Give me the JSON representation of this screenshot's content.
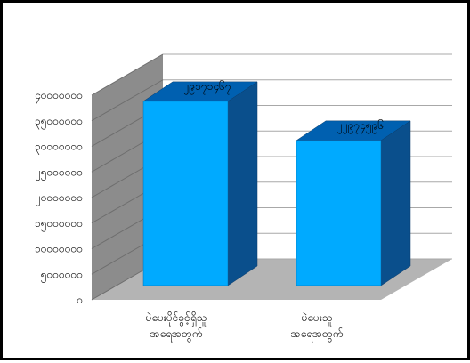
{
  "chart_data": {
    "type": "bar",
    "categories": [
      [
        "မဲပေးပိုင်ခွင့်ရှိသူ",
        "အရေအတွက်"
      ],
      [
        "မဲပေးသူ",
        "အရေအတွက်"
      ]
    ],
    "values": [
      29171467,
      22974596
    ],
    "value_labels": [
      "၂၉၁၇၁၄၆၇",
      "၂၂၉၇၄၅၉၆"
    ],
    "ytick_values": [
      0,
      5000000,
      10000000,
      15000000,
      20000000,
      25000000,
      30000000,
      35000000,
      40000000
    ],
    "ytick_labels": [
      "၀",
      "၅၀၀၀၀၀၀",
      "၁၀၀၀၀၀၀၀",
      "၁၅၀၀၀၀၀၀",
      "၂၀၀၀၀၀၀၀",
      "၂၅၀၀၀၀၀၀",
      "၃၀၀၀၀၀၀၀",
      "၃၅၀၀၀၀၀၀",
      "၄၀၀၀၀၀၀၀"
    ],
    "ylim": [
      0,
      40000000
    ],
    "grid": true,
    "three_d": true,
    "colors": {
      "bar_front": "#00aaff",
      "bar_side": "#0a4f8c",
      "bar_top": "#0060b0",
      "wall": "#8c8c8c",
      "floor": "#b4b4b4",
      "grid": "#a8a8a8"
    }
  }
}
